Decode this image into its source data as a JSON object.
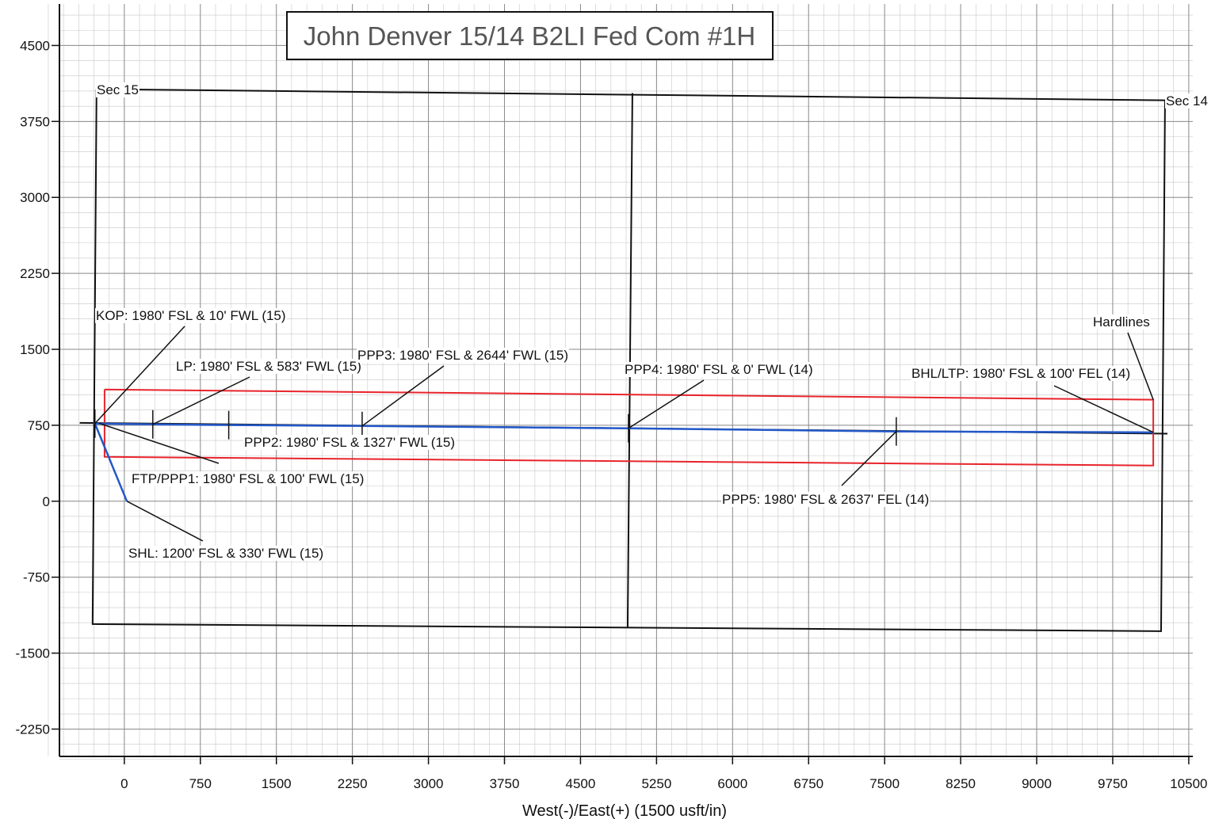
{
  "chart_data": {
    "type": "line",
    "title": "John Denver 15/14 B2LI Fed Com #1H",
    "x_label": "West(-)/East(+) (1500 usft/in)",
    "xlim": [
      -640,
      10540
    ],
    "ylim": [
      -2520,
      4910
    ],
    "xticks": [
      0,
      750,
      1500,
      2250,
      3000,
      3750,
      4500,
      5250,
      6000,
      6750,
      7500,
      8250,
      9000,
      9750,
      10500
    ],
    "yticks": [
      -2250,
      -1500,
      -750,
      0,
      750,
      1500,
      2250,
      3000,
      3750,
      4500
    ],
    "grid": true,
    "series": [
      {
        "color": "#111111",
        "x": [
          -274,
          10266,
          10227,
          -313,
          -274,
          null,
          5012,
          4965,
          null,
          -440,
          10290
        ],
        "values": [
          4069,
          3959,
          -1283,
          -1213,
          4069,
          null,
          4030,
          -1252,
          null,
          774,
          667
        ]
      },
      {
        "color": "#e8242c",
        "x": [
          -195,
          10150,
          10150,
          -195,
          -195
        ],
        "values": [
          1103,
          1002,
          352,
          438,
          1103
        ]
      },
      {
        "color": "#2358c8",
        "x": [
          25,
          -290,
          281,
          1030,
          2346,
          4973,
          7615,
          10150
        ],
        "values": [
          0,
          767,
          759,
          752,
          743,
          720,
          689,
          680
        ]
      }
    ],
    "annotations": [
      {
        "text": "Sec 15",
        "x": -274,
        "y": 4069
      },
      {
        "text": "Sec 14",
        "x": 10266,
        "y": 3959
      },
      {
        "text": "KOP: 1980' FSL & 10' FWL (15)",
        "x": -290,
        "y": 767
      },
      {
        "text": "LP: 1980' FSL & 583' FWL (15)",
        "x": 281,
        "y": 759
      },
      {
        "text": "PPP3: 1980' FSL & 2644' FWL (15)",
        "x": 2346,
        "y": 743
      },
      {
        "text": "PPP4: 1980' FSL & 0' FWL (14)",
        "x": 4973,
        "y": 720
      },
      {
        "text": "BHL/LTP: 1980' FSL & 100' FEL (14)",
        "x": 10150,
        "y": 680
      },
      {
        "text": "Hardlines",
        "x": 10150,
        "y": 1002
      },
      {
        "text": "PPP2: 1980' FSL & 1327' FWL (15)",
        "x": 1030,
        "y": 752
      },
      {
        "text": "FTP/PPP1: 1980' FSL & 100' FWL (15)",
        "x": -250,
        "y": 770
      },
      {
        "text": "PPP5: 1980' FSL & 2637' FEL (14)",
        "x": 7615,
        "y": 689
      },
      {
        "text": "SHL: 1200' FSL & 330' FWL (15)",
        "x": 25,
        "y": 0
      }
    ]
  }
}
